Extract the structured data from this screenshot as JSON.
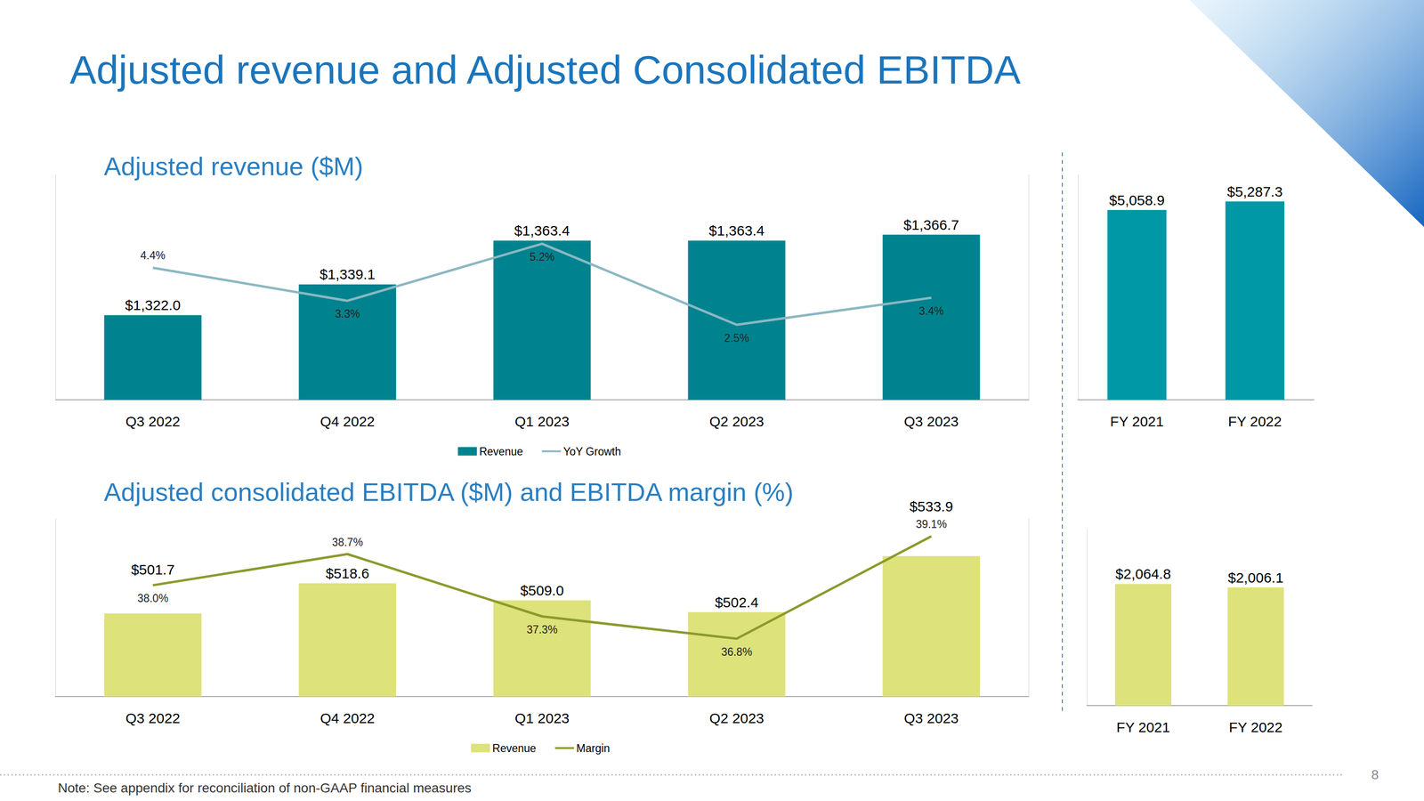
{
  "title": "Adjusted revenue and Adjusted Consolidated EBITDA",
  "note": "Note: See appendix for reconciliation of non-GAAP financial measures",
  "page_number": 8,
  "chart_data": [
    {
      "type": "bar",
      "title": "Adjusted revenue ($M)",
      "categories": [
        "Q3 2022",
        "Q4 2022",
        "Q1 2023",
        "Q2 2023",
        "Q3 2023"
      ],
      "series": [
        {
          "name": "Revenue",
          "type": "bar",
          "color": "#00838f",
          "values": [
            1322.0,
            1339.1,
            1363.4,
            1363.4,
            1366.7
          ],
          "value_labels": [
            "$1,322.0",
            "$1,339.1",
            "$1,363.4",
            "$1,363.4",
            "$1,366.7"
          ]
        },
        {
          "name": "YoY Growth",
          "type": "line",
          "axis": "y2",
          "color": "#8ab8c2",
          "values": [
            4.4,
            3.3,
            5.2,
            2.5,
            3.4
          ],
          "value_labels": [
            "4.4%",
            "3.3%",
            "5.2%",
            "2.5%",
            "3.4%"
          ]
        }
      ],
      "ylim": [
        1275,
        1400
      ],
      "y2lim": [
        0,
        7.5
      ],
      "data_labels": true,
      "tick_labels": "x",
      "grid": false,
      "legend": "bottom"
    },
    {
      "type": "bar",
      "categories": [
        "FY 2021",
        "FY 2022"
      ],
      "values": [
        5058.9,
        5287.3
      ],
      "value_labels": [
        "$5,058.9",
        "$5,287.3"
      ],
      "color": "#0097a7",
      "ylim": [
        0,
        6000
      ],
      "data_labels": true,
      "tick_labels": "x",
      "grid": false
    },
    {
      "type": "bar",
      "title": "Adjusted consolidated EBITDA ($M) and EBITDA margin (%)",
      "categories": [
        "Q3 2022",
        "Q4 2022",
        "Q1 2023",
        "Q2 2023",
        "Q3 2023"
      ],
      "series": [
        {
          "name": "Revenue",
          "type": "bar",
          "color": "#dde27a",
          "values": [
            501.7,
            518.6,
            509.0,
            502.4,
            533.9
          ],
          "value_labels": [
            "$501.7",
            "$518.6",
            "$509.0",
            "$502.4",
            "$533.9"
          ]
        },
        {
          "name": "Margin",
          "type": "line",
          "axis": "y2",
          "color": "#8c9a2c",
          "values": [
            38.0,
            38.7,
            37.3,
            36.8,
            39.1
          ],
          "value_labels": [
            "38.0%",
            "38.7%",
            "37.3%",
            "36.8%",
            "39.1%"
          ]
        }
      ],
      "ylim": [
        455,
        555
      ],
      "y2lim": [
        35.5,
        39.5
      ],
      "data_labels": true,
      "tick_labels": "x",
      "grid": false,
      "legend": "bottom"
    },
    {
      "type": "bar",
      "categories": [
        "FY 2021",
        "FY 2022"
      ],
      "values": [
        2064.8,
        2006.1
      ],
      "value_labels": [
        "$2,064.8",
        "$2,006.1"
      ],
      "color": "#dde27a",
      "ylim": [
        0,
        3000
      ],
      "data_labels": true,
      "tick_labels": "x",
      "grid": false
    }
  ]
}
